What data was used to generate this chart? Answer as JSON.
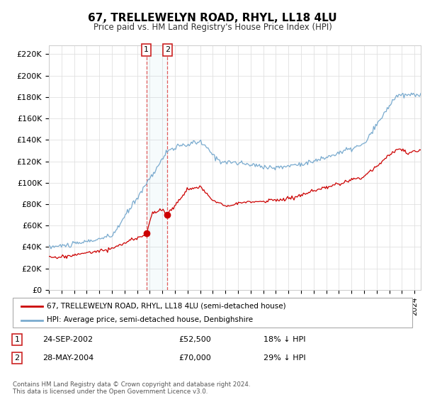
{
  "title": "67, TRELLEWELYN ROAD, RHYL, LL18 4LU",
  "subtitle": "Price paid vs. HM Land Registry's House Price Index (HPI)",
  "ylabel_ticks": [
    "£0",
    "£20K",
    "£40K",
    "£60K",
    "£80K",
    "£100K",
    "£120K",
    "£140K",
    "£160K",
    "£180K",
    "£200K",
    "£220K"
  ],
  "ytick_values": [
    0,
    20000,
    40000,
    60000,
    80000,
    100000,
    120000,
    140000,
    160000,
    180000,
    200000,
    220000
  ],
  "ylim": [
    0,
    228000
  ],
  "xlim_start": 1995.0,
  "xlim_end": 2024.5,
  "sale1_x": 2002.73,
  "sale1_y": 52500,
  "sale2_x": 2004.41,
  "sale2_y": 70000,
  "sale1_label": "24-SEP-2002",
  "sale1_price": "£52,500",
  "sale1_hpi": "18% ↓ HPI",
  "sale2_label": "28-MAY-2004",
  "sale2_price": "£70,000",
  "sale2_hpi": "29% ↓ HPI",
  "legend_line1": "67, TRELLEWELYN ROAD, RHYL, LL18 4LU (semi-detached house)",
  "legend_line2": "HPI: Average price, semi-detached house, Denbighshire",
  "footnote": "Contains HM Land Registry data © Crown copyright and database right 2024.\nThis data is licensed under the Open Government Licence v3.0.",
  "line_color_red": "#cc0000",
  "line_color_blue": "#7aabcf",
  "bg_color": "#ffffff",
  "grid_color": "#e0e0e0"
}
